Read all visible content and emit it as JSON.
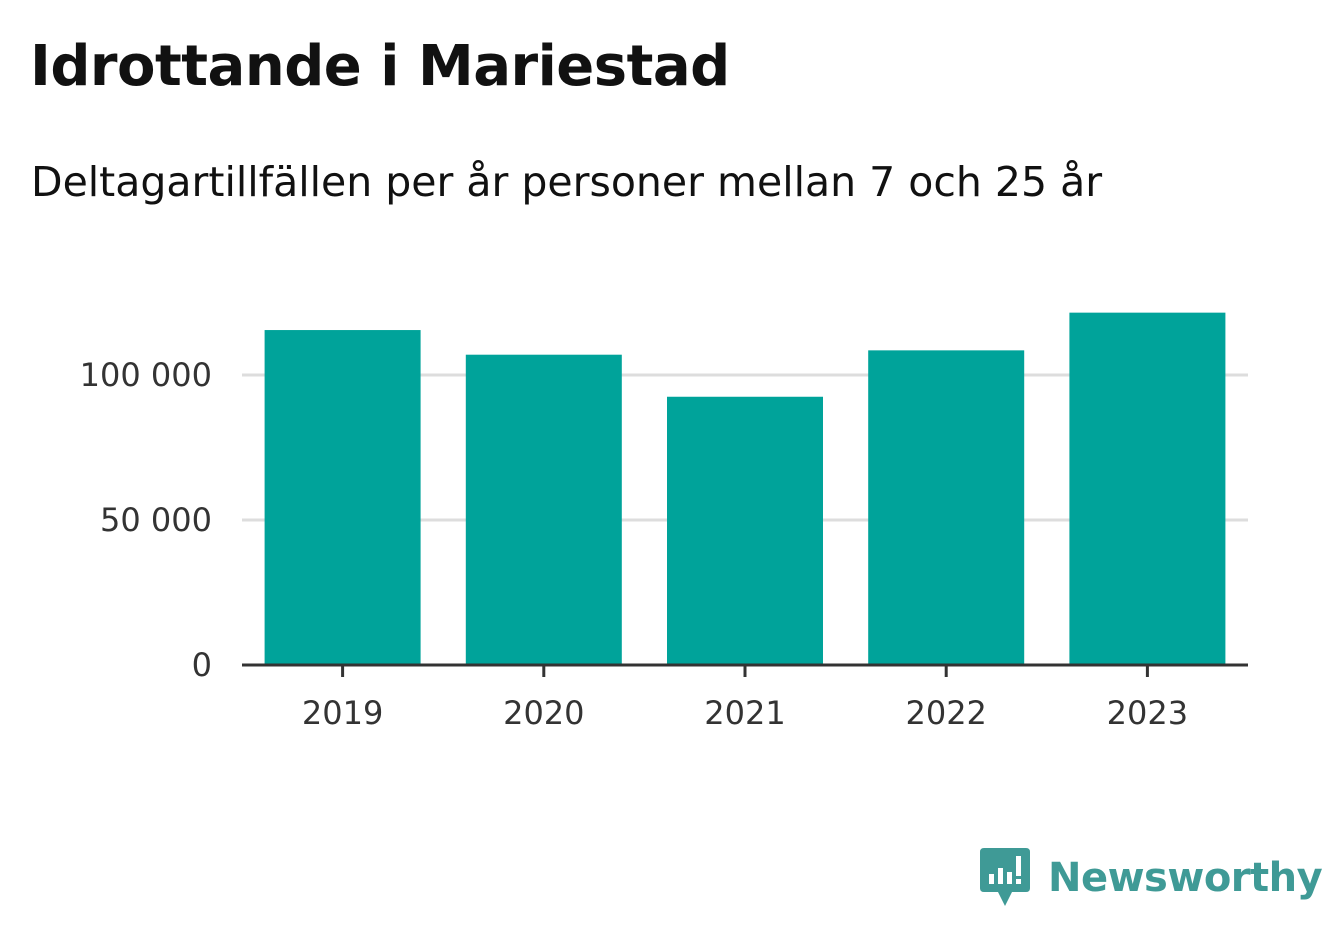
{
  "header": {
    "title": "Idrottande i Mariestad",
    "subtitle": "Deltagartillfällen per år personer mellan 7 och 25 år"
  },
  "brand": {
    "name": "Newsworthy",
    "icon": "newsworthy-logo-icon",
    "color": "#3f9a96"
  },
  "colors": {
    "bar": "#00a39a",
    "grid": "#dddddd",
    "axis": "#333333"
  },
  "chart_data": {
    "type": "bar",
    "title": "Idrottande i Mariestad",
    "subtitle": "Deltagartillfällen per år personer mellan 7 och 25 år",
    "xlabel": "",
    "ylabel": "",
    "categories": [
      "2019",
      "2020",
      "2021",
      "2022",
      "2023"
    ],
    "values": [
      115500,
      107000,
      92500,
      108500,
      121500
    ],
    "ylim": [
      0,
      125000
    ],
    "yticks": [
      0,
      50000,
      100000
    ],
    "ytick_labels": [
      "0",
      "50 000",
      "100 000"
    ],
    "grid": true,
    "legend": "none"
  }
}
